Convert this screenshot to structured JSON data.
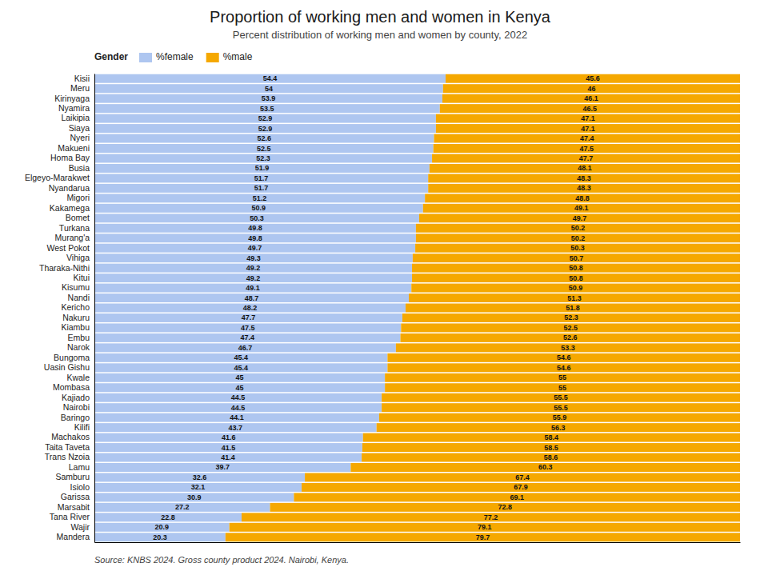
{
  "chart_data": {
    "type": "bar",
    "orientation": "horizontal",
    "stacked": true,
    "title": "Proportion of working men and women in Kenya",
    "subtitle": "Percent distribution of working men and women by county, 2022",
    "annotations": [
      "Source: KNBS 2024. Gross county product 2024. Nairobi, Kenya."
    ],
    "legend_title": "Gender",
    "legend": "top-left",
    "grid": false,
    "data_labels": true,
    "tick_labels": "y",
    "xlim": [
      0,
      100
    ],
    "xticks": [],
    "categories": [
      "Kisii",
      "Meru",
      "Kirinyaga",
      "Nyamira",
      "Laikipia",
      "Siaya",
      "Nyeri",
      "Makueni",
      "Homa Bay",
      "Busia",
      "Elgeyo-Marakwet",
      "Nyandarua",
      "Migori",
      "Kakamega",
      "Bomet",
      "Turkana",
      "Murang'a",
      "West Pokot",
      "Vihiga",
      "Tharaka-Nithi",
      "Kitui",
      "Kisumu",
      "Nandi",
      "Kericho",
      "Nakuru",
      "Kiambu",
      "Embu",
      "Narok",
      "Bungoma",
      "Uasin Gishu",
      "Kwale",
      "Mombasa",
      "Kajiado",
      "Nairobi",
      "Baringo",
      "Kilifi",
      "Machakos",
      "Taita Taveta",
      "Trans Nzoia",
      "Lamu",
      "Samburu",
      "Isiolo",
      "Garissa",
      "Marsabit",
      "Tana River",
      "Wajir",
      "Mandera"
    ],
    "series": [
      {
        "name": "%female",
        "color": "#aec6f0",
        "values": [
          54.4,
          54,
          53.9,
          53.5,
          52.9,
          52.9,
          52.6,
          52.5,
          52.3,
          51.9,
          51.7,
          51.7,
          51.2,
          50.9,
          50.3,
          49.8,
          49.8,
          49.7,
          49.3,
          49.2,
          49.2,
          49.1,
          48.7,
          48.2,
          47.7,
          47.5,
          47.4,
          46.7,
          45.4,
          45.4,
          45,
          45,
          44.5,
          44.5,
          44.1,
          43.7,
          41.6,
          41.5,
          41.4,
          39.7,
          32.6,
          32.1,
          30.9,
          27.2,
          22.8,
          20.9,
          20.3
        ]
      },
      {
        "name": "%male",
        "color": "#f5a800",
        "values": [
          45.6,
          46,
          46.1,
          46.5,
          47.1,
          47.1,
          47.4,
          47.5,
          47.7,
          48.1,
          48.3,
          48.3,
          48.8,
          49.1,
          49.7,
          50.2,
          50.2,
          50.3,
          50.7,
          50.8,
          50.8,
          50.9,
          51.3,
          51.8,
          52.3,
          52.5,
          52.6,
          53.3,
          54.6,
          54.6,
          55,
          55,
          55.5,
          55.5,
          55.9,
          56.3,
          58.4,
          58.5,
          58.6,
          60.3,
          67.4,
          67.9,
          69.1,
          72.8,
          77.2,
          79.1,
          79.7
        ]
      }
    ]
  }
}
